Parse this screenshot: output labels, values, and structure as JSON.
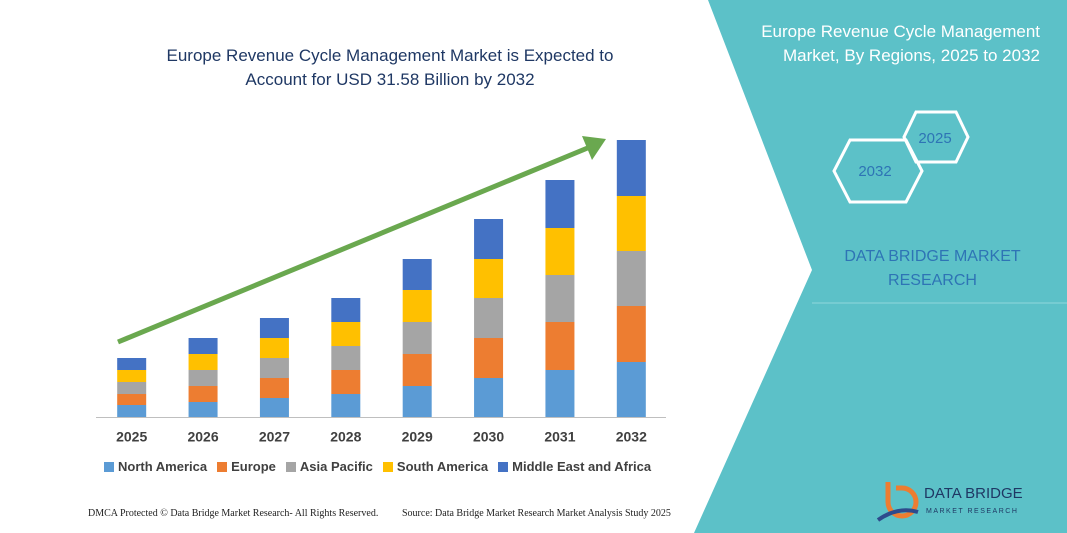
{
  "chart_data": {
    "type": "stacked_bar",
    "title": "Europe Revenue Cycle Management Market is Expected to Account for USD 31.58 Billion by 2032",
    "categories": [
      "2025",
      "2026",
      "2027",
      "2028",
      "2029",
      "2030",
      "2031",
      "2032"
    ],
    "series": [
      {
        "name": "North America",
        "color": "#5b9bd5",
        "values": [
          12,
          15,
          19,
          23,
          31,
          39,
          47,
          55
        ]
      },
      {
        "name": "Europe",
        "color": "#ed7d31",
        "values": [
          11,
          16,
          20,
          24,
          32,
          40,
          48,
          56
        ]
      },
      {
        "name": "Asia Pacific",
        "color": "#a5a5a5",
        "values": [
          12,
          16,
          20,
          24,
          32,
          40,
          47,
          55
        ]
      },
      {
        "name": "South America",
        "color": "#ffc000",
        "values": [
          12,
          16,
          20,
          24,
          32,
          39,
          47,
          55
        ]
      },
      {
        "name": "Middle East and Africa",
        "color": "#4472c4",
        "values": [
          12,
          16,
          20,
          24,
          31,
          40,
          48,
          56
        ]
      }
    ],
    "ylim": [
      0,
      280
    ],
    "grid": false,
    "legend": "bottom"
  },
  "panel": {
    "title": "Europe Revenue Cycle Management Market, By Regions, 2025 to 2032",
    "hexagons": [
      "2025",
      "2032"
    ],
    "brand": "DATA BRIDGE MARKET RESEARCH"
  },
  "logo": {
    "name": "DATA BRIDGE",
    "tagline": "MARKET RESEARCH"
  },
  "footer": {
    "copyright": "DMCA Protected © Data Bridge Market Research- All Rights Reserved.",
    "source": "Source: Data Bridge Market Research  Market Analysis Study 2025"
  }
}
